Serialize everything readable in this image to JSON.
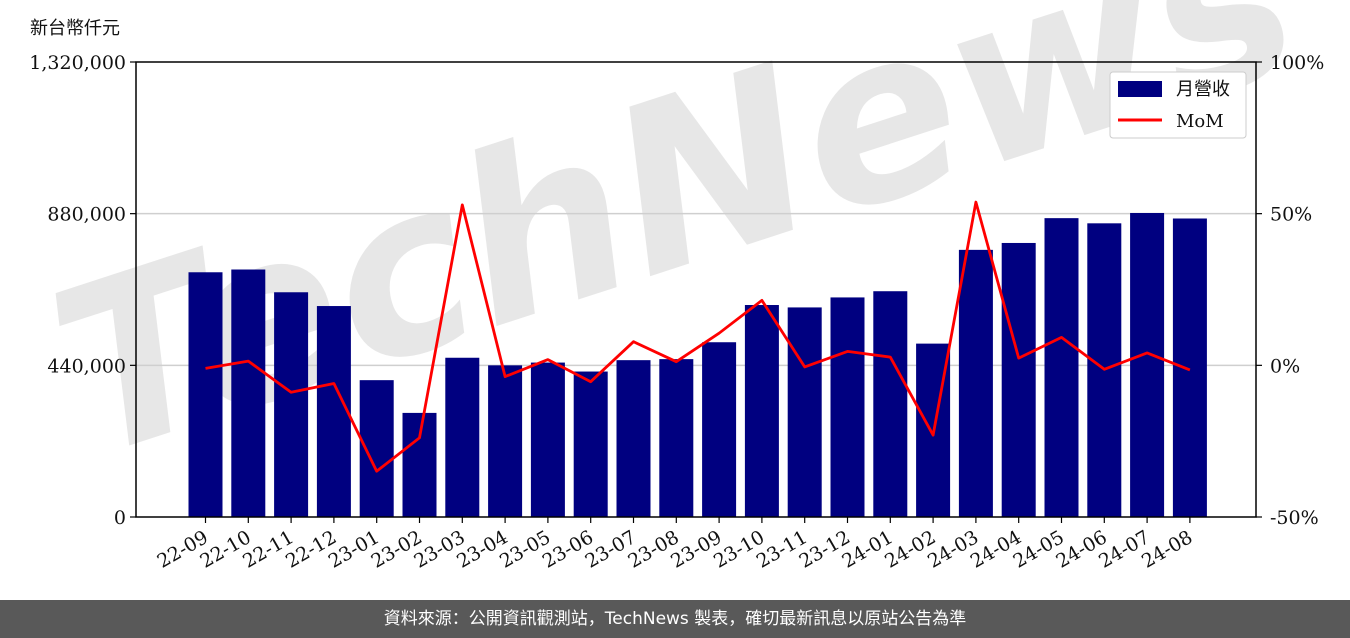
{
  "unit_label": "新台幣仟元",
  "footer_text": "資料來源：公開資訊觀測站，TechNews 製表，確切最新訊息以原站公告為準",
  "watermark": "TechNews",
  "colors": {
    "bar": "#000080",
    "line": "#ff0000",
    "footer_bg": "#595959"
  },
  "chart_data": {
    "type": "bar",
    "categories": [
      "22-09",
      "22-10",
      "22-11",
      "22-12",
      "23-01",
      "23-02",
      "23-03",
      "23-04",
      "23-05",
      "23-06",
      "23-07",
      "23-08",
      "23-09",
      "23-10",
      "23-11",
      "23-12",
      "24-01",
      "24-02",
      "24-03",
      "24-04",
      "24-05",
      "24-06",
      "24-07",
      "24-08"
    ],
    "series": [
      {
        "name": "月營收",
        "type": "bar",
        "axis": "left",
        "values": [
          710000,
          718000,
          652000,
          612000,
          397000,
          302000,
          462000,
          440000,
          448000,
          422000,
          455000,
          458000,
          507000,
          615000,
          608000,
          637000,
          655000,
          503000,
          775000,
          795000,
          867000,
          852000,
          882000,
          866000
        ]
      },
      {
        "name": "MoM",
        "type": "line",
        "axis": "right",
        "values": [
          -1.0,
          1.4,
          -8.9,
          -6.0,
          -34.9,
          -23.9,
          52.9,
          -3.7,
          1.9,
          -5.4,
          7.8,
          1.2,
          10.6,
          21.4,
          -0.5,
          4.6,
          2.7,
          -23.0,
          53.8,
          2.4,
          9.2,
          -1.3,
          4.1,
          -1.5
        ]
      }
    ],
    "y_left": {
      "ylim": [
        0,
        1320000
      ],
      "ticks": [
        "0",
        "440,000",
        "880,000",
        "1,320,000"
      ],
      "tick_values": [
        0,
        440000,
        880000,
        1320000
      ]
    },
    "y_right": {
      "ylim": [
        -50,
        100
      ],
      "ticks": [
        "-50%",
        "0%",
        "50%",
        "100%"
      ],
      "tick_values": [
        -50,
        0,
        50,
        100
      ]
    },
    "grid": "horizontal",
    "legend": "top-right"
  }
}
